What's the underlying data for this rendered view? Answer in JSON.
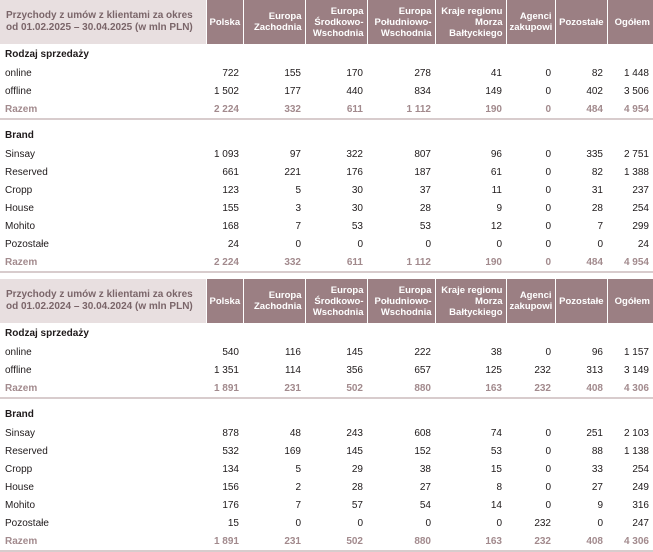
{
  "columns": [
    "Polska",
    "Europa Zachodnia",
    "Europa Środkowo-Wschodnia",
    "Europa Południowo-Wschodnia",
    "Kraje regionu Morza Bałtyckiego",
    "Agenci zakupowi",
    "Pozostałe",
    "Ogółem"
  ],
  "tables": [
    {
      "title": "Przychody z umów z klientami za okres od 01.02.2025 – 30.04.2025 (w mln PLN)",
      "sales_section": "Rodzaj sprzedaży",
      "sales_rows": [
        {
          "label": "online",
          "values": [
            "722",
            "155",
            "170",
            "278",
            "41",
            "0",
            "82",
            "1 448"
          ]
        },
        {
          "label": "offline",
          "values": [
            "1 502",
            "177",
            "440",
            "834",
            "149",
            "0",
            "402",
            "3 506"
          ]
        }
      ],
      "sales_total": {
        "label": "Razem",
        "values": [
          "2 224",
          "332",
          "611",
          "1 112",
          "190",
          "0",
          "484",
          "4 954"
        ]
      },
      "brand_section": "Brand",
      "brand_rows": [
        {
          "label": "Sinsay",
          "values": [
            "1 093",
            "97",
            "322",
            "807",
            "96",
            "0",
            "335",
            "2 751"
          ]
        },
        {
          "label": "Reserved",
          "values": [
            "661",
            "221",
            "176",
            "187",
            "61",
            "0",
            "82",
            "1 388"
          ]
        },
        {
          "label": "Cropp",
          "values": [
            "123",
            "5",
            "30",
            "37",
            "11",
            "0",
            "31",
            "237"
          ]
        },
        {
          "label": "House",
          "values": [
            "155",
            "3",
            "30",
            "28",
            "9",
            "0",
            "28",
            "254"
          ]
        },
        {
          "label": "Mohito",
          "values": [
            "168",
            "7",
            "53",
            "53",
            "12",
            "0",
            "7",
            "299"
          ]
        },
        {
          "label": "Pozostałe",
          "values": [
            "24",
            "0",
            "0",
            "0",
            "0",
            "0",
            "0",
            "24"
          ]
        }
      ],
      "brand_total": {
        "label": "Razem",
        "values": [
          "2 224",
          "332",
          "611",
          "1 112",
          "190",
          "0",
          "484",
          "4 954"
        ]
      }
    },
    {
      "title": "Przychody z umów z klientami za okres od 01.02.2024 – 30.04.2024 (w mln PLN)",
      "sales_section": "Rodzaj sprzedaży",
      "sales_rows": [
        {
          "label": "online",
          "values": [
            "540",
            "116",
            "145",
            "222",
            "38",
            "0",
            "96",
            "1 157"
          ]
        },
        {
          "label": "offline",
          "values": [
            "1 351",
            "114",
            "356",
            "657",
            "125",
            "232",
            "313",
            "3 149"
          ]
        }
      ],
      "sales_total": {
        "label": "Razem",
        "values": [
          "1 891",
          "231",
          "502",
          "880",
          "163",
          "232",
          "408",
          "4 306"
        ]
      },
      "brand_section": "Brand",
      "brand_rows": [
        {
          "label": "Sinsay",
          "values": [
            "878",
            "48",
            "243",
            "608",
            "74",
            "0",
            "251",
            "2 103"
          ]
        },
        {
          "label": "Reserved",
          "values": [
            "532",
            "169",
            "145",
            "152",
            "53",
            "0",
            "88",
            "1 138"
          ]
        },
        {
          "label": "Cropp",
          "values": [
            "134",
            "5",
            "29",
            "38",
            "15",
            "0",
            "33",
            "254"
          ]
        },
        {
          "label": "House",
          "values": [
            "156",
            "2",
            "28",
            "27",
            "8",
            "0",
            "27",
            "249"
          ]
        },
        {
          "label": "Mohito",
          "values": [
            "176",
            "7",
            "57",
            "54",
            "14",
            "0",
            "9",
            "316"
          ]
        },
        {
          "label": "Pozostałe",
          "values": [
            "15",
            "0",
            "0",
            "0",
            "0",
            "232",
            "0",
            "247"
          ]
        }
      ],
      "brand_total": {
        "label": "Razem",
        "values": [
          "1 891",
          "231",
          "502",
          "880",
          "163",
          "232",
          "408",
          "4 306"
        ]
      }
    }
  ]
}
